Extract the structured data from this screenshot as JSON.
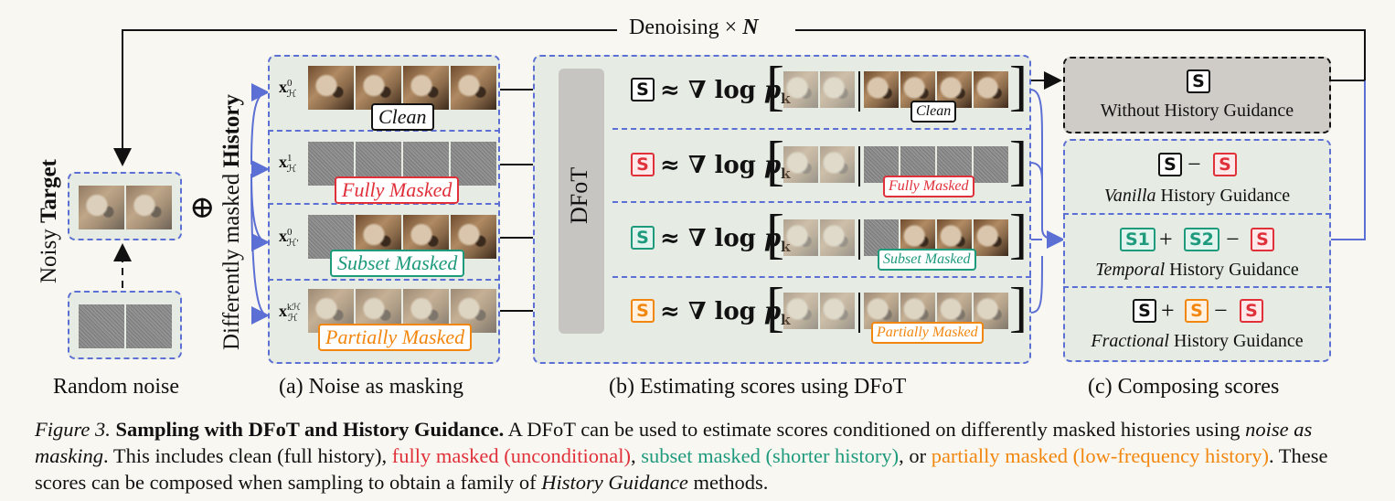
{
  "denoising": "Denoising",
  "denoising_times": "×",
  "denoising_n": "N",
  "noisy": "Noisy",
  "target": "Target",
  "random_noise": "Random noise",
  "oplus": "⊕",
  "history_label_pre": "Differently masked ",
  "history_label_bold": "History",
  "x_labels": [
    "x",
    "x",
    "x",
    "x"
  ],
  "x_sups": [
    "0",
    "1",
    "0",
    "kℋ"
  ],
  "x_subs": [
    "ℋ",
    "ℋ",
    "ℋ′",
    "ℋ"
  ],
  "tags": {
    "clean": "Clean",
    "fully": "Fully Masked",
    "subset": "Subset Masked",
    "partial": "Partially Masked"
  },
  "dfot": "DFoT",
  "score_symbol": "S",
  "score_eq": "≈ ∇ log",
  "score_p": "p",
  "score_k": "k",
  "without_guidance": "Without History Guidance",
  "vanilla": "Vanilla",
  "temporal": "Temporal",
  "fractional": "Fractional",
  "history_guidance_suffix": " History Guidance",
  "s1": "S1",
  "s2": "S2",
  "minus": "−",
  "plus": "+",
  "panel_a": "(a) Noise as masking",
  "panel_b": "(b) Estimating scores using DFoT",
  "panel_c": "(c) Composing scores",
  "caption": {
    "fig": "Figure 3.",
    "title": "Sampling with DFoT and History Guidance.",
    "t1": " A DFoT can be used to estimate scores conditioned on differently masked histories using ",
    "nam": "noise as masking",
    "t2": ". This includes clean (full history), ",
    "red": "fully masked (unconditional)",
    "t3": ", ",
    "teal": "subset masked (shorter history)",
    "t4": ", or ",
    "orange": "partially masked (low-frequency history)",
    "t5": ". These scores can be composed when sampling to obtain a family of ",
    "hg": "History Guidance",
    "t6": " methods."
  },
  "colors": {
    "red": "#e0303a",
    "teal": "#1e9a7c",
    "orange": "#f2870f",
    "blue": "#5b6fd4"
  }
}
